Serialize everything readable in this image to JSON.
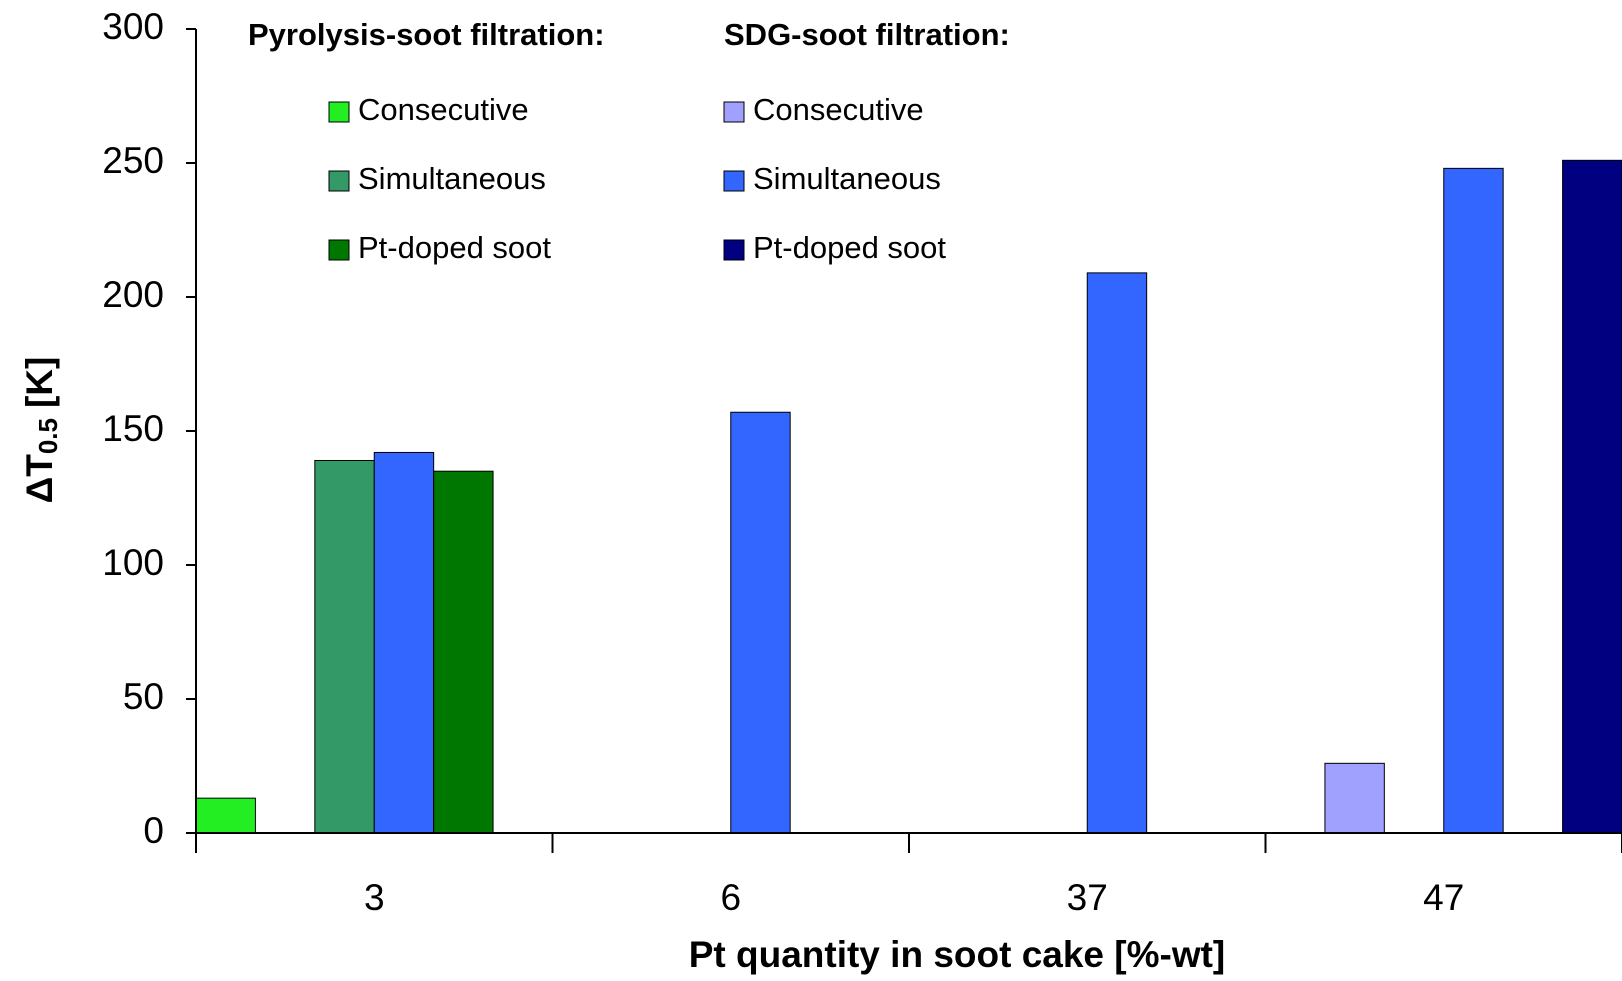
{
  "chart_data": {
    "type": "bar",
    "y_label": [
      "ΔT",
      "0.5",
      "[K]"
    ],
    "x_label": "Pt quantity in soot cake [%-wt]",
    "legend_titles": [
      "Pyrolysis-soot filtration:",
      "SDG-soot filtration:"
    ],
    "categories": [
      "3",
      "6",
      "37",
      "47"
    ],
    "series": [
      {
        "name": "Consecutive",
        "color": "#22ee22",
        "values": [
          13,
          null,
          null,
          null
        ]
      },
      {
        "name": "Consecutive",
        "color": "#a0a0ff",
        "values": [
          null,
          null,
          null,
          26
        ]
      },
      {
        "name": "Simultaneous",
        "color": "#339966",
        "values": [
          139,
          null,
          null,
          null
        ]
      },
      {
        "name": "Simultaneous",
        "color": "#3366ff",
        "values": [
          142,
          157,
          209,
          248
        ]
      },
      {
        "name": "Pt-doped soot",
        "color": "#007700",
        "values": [
          135,
          null,
          null,
          null
        ]
      },
      {
        "name": "Pt-doped soot",
        "color": "#000080",
        "values": [
          null,
          null,
          null,
          251
        ]
      }
    ],
    "ylim": [
      0,
      300
    ],
    "yticks": [
      0,
      50,
      100,
      150,
      200,
      250,
      300
    ],
    "grid": false
  }
}
